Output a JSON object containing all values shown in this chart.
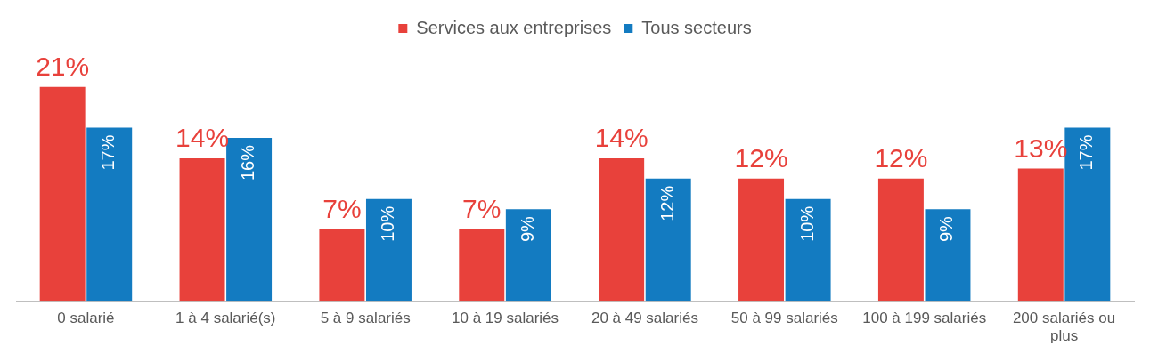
{
  "chart_data": {
    "type": "bar",
    "categories": [
      "0 salarié",
      "1 à 4 salarié(s)",
      "5 à 9 salariés",
      "10 à 19 salariés",
      "20 à 49 salariés",
      "50 à 99 salariés",
      "100 à 199 salariés",
      "200 salariés ou plus"
    ],
    "series": [
      {
        "name": "Services aux entreprises",
        "color": "#e8413b",
        "values": [
          21,
          14,
          7,
          7,
          14,
          12,
          12,
          13
        ],
        "value_labels": [
          "21%",
          "14%",
          "7%",
          "7%",
          "14%",
          "12%",
          "12%",
          "13%"
        ]
      },
      {
        "name": "Tous secteurs",
        "color": "#137bc1",
        "values": [
          17,
          16,
          10,
          9,
          12,
          10,
          9,
          17
        ],
        "value_labels": [
          "17%",
          "16%",
          "10%",
          "9%",
          "12%",
          "10%",
          "9%",
          "17%"
        ]
      }
    ],
    "legend": "top",
    "grid": false
  }
}
